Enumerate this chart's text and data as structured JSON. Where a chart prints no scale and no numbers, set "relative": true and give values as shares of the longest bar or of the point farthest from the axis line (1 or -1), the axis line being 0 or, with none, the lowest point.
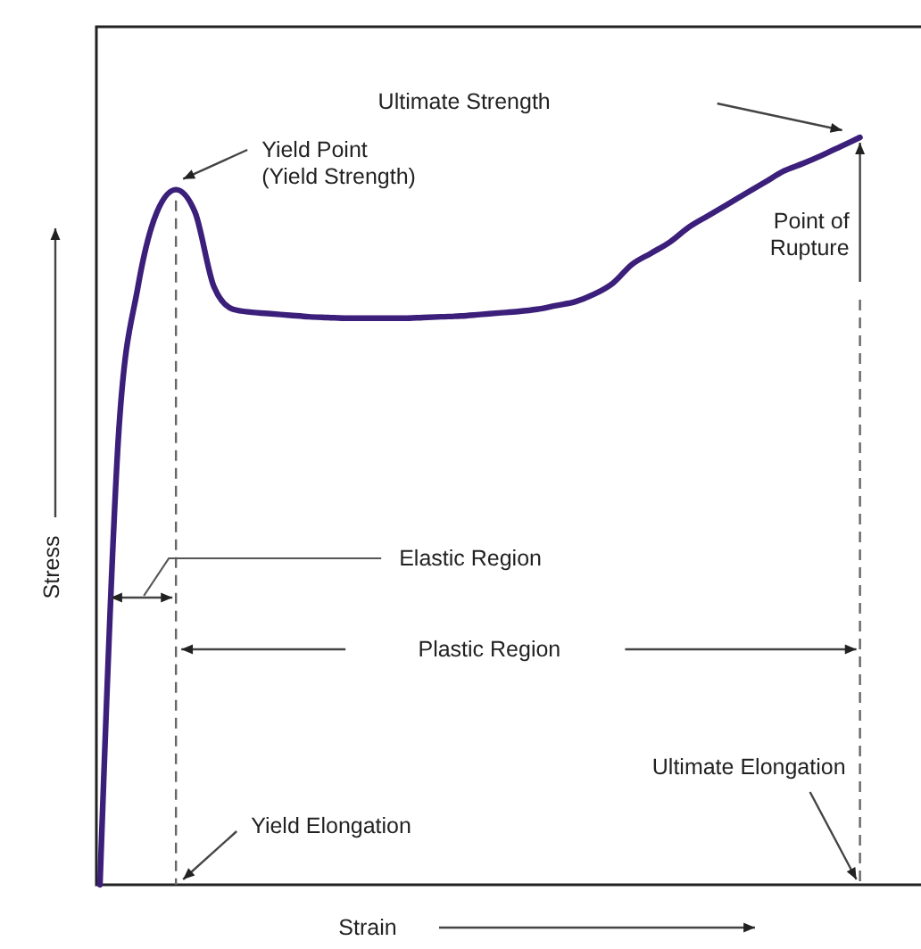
{
  "chart_data": {
    "type": "line",
    "relative": true,
    "xlabel": "Strain",
    "ylabel": "Stress",
    "categories": [
      null,
      null,
      null,
      null,
      null,
      null,
      null,
      null,
      null,
      null,
      null,
      null,
      null,
      null,
      null,
      null,
      null,
      null,
      null,
      null,
      null,
      null,
      null,
      null,
      null,
      null,
      null,
      null,
      null,
      null,
      null,
      null,
      null,
      null,
      null,
      null,
      null,
      null,
      null,
      null,
      null
    ],
    "series": [
      {
        "color": "#3b1f7a",
        "values": [
          0,
          0.61,
          0.8,
          0.9,
          0.93,
          0.9,
          0.8,
          0.77,
          0.766,
          0.764,
          0.762,
          0.76,
          0.759,
          0.758,
          0.758,
          0.758,
          0.758,
          0.759,
          0.76,
          0.761,
          0.763,
          0.765,
          0.767,
          0.77,
          0.775,
          0.78,
          0.79,
          0.805,
          0.83,
          0.845,
          0.86,
          0.88,
          0.895,
          0.91,
          0.925,
          0.94,
          0.955,
          0.965,
          0.976,
          0.988,
          1
        ]
      }
    ],
    "annotations": [
      "Ultimate Strength",
      "Yield Point\n(Yield Strength)",
      "Point of\nRupture",
      "Elastic Region",
      "Plastic Region",
      "Ultimate Elongation",
      "Yield Elongation"
    ],
    "grid": false,
    "marker": "none",
    "line_style": "solid"
  }
}
